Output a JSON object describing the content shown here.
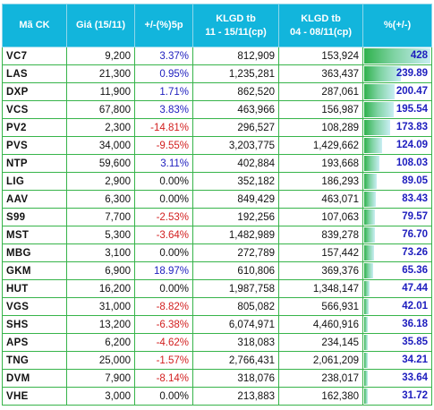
{
  "headers": {
    "code": "Mã CK",
    "price": "Giá (15/11)",
    "change": "+/-(%)5p",
    "klgd1_line1": "KLGD tb",
    "klgd1_line2": "11 - 15/11(cp)",
    "klgd2_line1": "KLGD tb",
    "klgd2_line2": "04 - 08/11(cp)",
    "pct": "%(+/-)"
  },
  "bar_max": 428,
  "rows": [
    {
      "code": "VC7",
      "price": "9,200",
      "change": "3.37%",
      "dir": "pos",
      "klgd1": "812,909",
      "klgd2": "153,924",
      "pct": "428",
      "pct_value": 428
    },
    {
      "code": "LAS",
      "price": "21,300",
      "change": "0.95%",
      "dir": "pos",
      "klgd1": "1,235,281",
      "klgd2": "363,437",
      "pct": "239.89",
      "pct_value": 239.89
    },
    {
      "code": "DXP",
      "price": "11,900",
      "change": "1.71%",
      "dir": "pos",
      "klgd1": "862,520",
      "klgd2": "287,061",
      "pct": "200.47",
      "pct_value": 200.47
    },
    {
      "code": "VCS",
      "price": "67,800",
      "change": "3.83%",
      "dir": "pos",
      "klgd1": "463,966",
      "klgd2": "156,987",
      "pct": "195.54",
      "pct_value": 195.54
    },
    {
      "code": "PV2",
      "price": "2,300",
      "change": "-14.81%",
      "dir": "neg",
      "klgd1": "296,527",
      "klgd2": "108,289",
      "pct": "173.83",
      "pct_value": 173.83
    },
    {
      "code": "PVS",
      "price": "34,000",
      "change": "-9.55%",
      "dir": "neg",
      "klgd1": "3,203,775",
      "klgd2": "1,429,662",
      "pct": "124.09",
      "pct_value": 124.09
    },
    {
      "code": "NTP",
      "price": "59,600",
      "change": "3.11%",
      "dir": "pos",
      "klgd1": "402,884",
      "klgd2": "193,668",
      "pct": "108.03",
      "pct_value": 108.03
    },
    {
      "code": "LIG",
      "price": "2,900",
      "change": "0.00%",
      "dir": "zero",
      "klgd1": "352,182",
      "klgd2": "186,293",
      "pct": "89.05",
      "pct_value": 89.05
    },
    {
      "code": "AAV",
      "price": "6,300",
      "change": "0.00%",
      "dir": "zero",
      "klgd1": "849,429",
      "klgd2": "463,071",
      "pct": "83.43",
      "pct_value": 83.43
    },
    {
      "code": "S99",
      "price": "7,700",
      "change": "-2.53%",
      "dir": "neg",
      "klgd1": "192,256",
      "klgd2": "107,063",
      "pct": "79.57",
      "pct_value": 79.57
    },
    {
      "code": "MST",
      "price": "5,300",
      "change": "-3.64%",
      "dir": "neg",
      "klgd1": "1,482,989",
      "klgd2": "839,278",
      "pct": "76.70",
      "pct_value": 76.7
    },
    {
      "code": "MBG",
      "price": "3,100",
      "change": "0.00%",
      "dir": "zero",
      "klgd1": "272,789",
      "klgd2": "157,442",
      "pct": "73.26",
      "pct_value": 73.26
    },
    {
      "code": "GKM",
      "price": "6,900",
      "change": "18.97%",
      "dir": "pos",
      "klgd1": "610,806",
      "klgd2": "369,376",
      "pct": "65.36",
      "pct_value": 65.36
    },
    {
      "code": "HUT",
      "price": "16,200",
      "change": "0.00%",
      "dir": "zero",
      "klgd1": "1,987,758",
      "klgd2": "1,348,147",
      "pct": "47.44",
      "pct_value": 47.44
    },
    {
      "code": "VGS",
      "price": "31,000",
      "change": "-8.82%",
      "dir": "neg",
      "klgd1": "805,082",
      "klgd2": "566,931",
      "pct": "42.01",
      "pct_value": 42.01
    },
    {
      "code": "SHS",
      "price": "13,200",
      "change": "-6.38%",
      "dir": "neg",
      "klgd1": "6,074,971",
      "klgd2": "4,460,916",
      "pct": "36.18",
      "pct_value": 36.18
    },
    {
      "code": "APS",
      "price": "6,200",
      "change": "-4.62%",
      "dir": "neg",
      "klgd1": "318,083",
      "klgd2": "234,145",
      "pct": "35.85",
      "pct_value": 35.85
    },
    {
      "code": "TNG",
      "price": "25,000",
      "change": "-1.57%",
      "dir": "neg",
      "klgd1": "2,766,431",
      "klgd2": "2,061,209",
      "pct": "34.21",
      "pct_value": 34.21
    },
    {
      "code": "DVM",
      "price": "7,900",
      "change": "-8.14%",
      "dir": "neg",
      "klgd1": "318,076",
      "klgd2": "238,017",
      "pct": "33.64",
      "pct_value": 33.64
    },
    {
      "code": "VHE",
      "price": "3,000",
      "change": "0.00%",
      "dir": "zero",
      "klgd1": "213,883",
      "klgd2": "162,380",
      "pct": "31.72",
      "pct_value": 31.72
    }
  ]
}
